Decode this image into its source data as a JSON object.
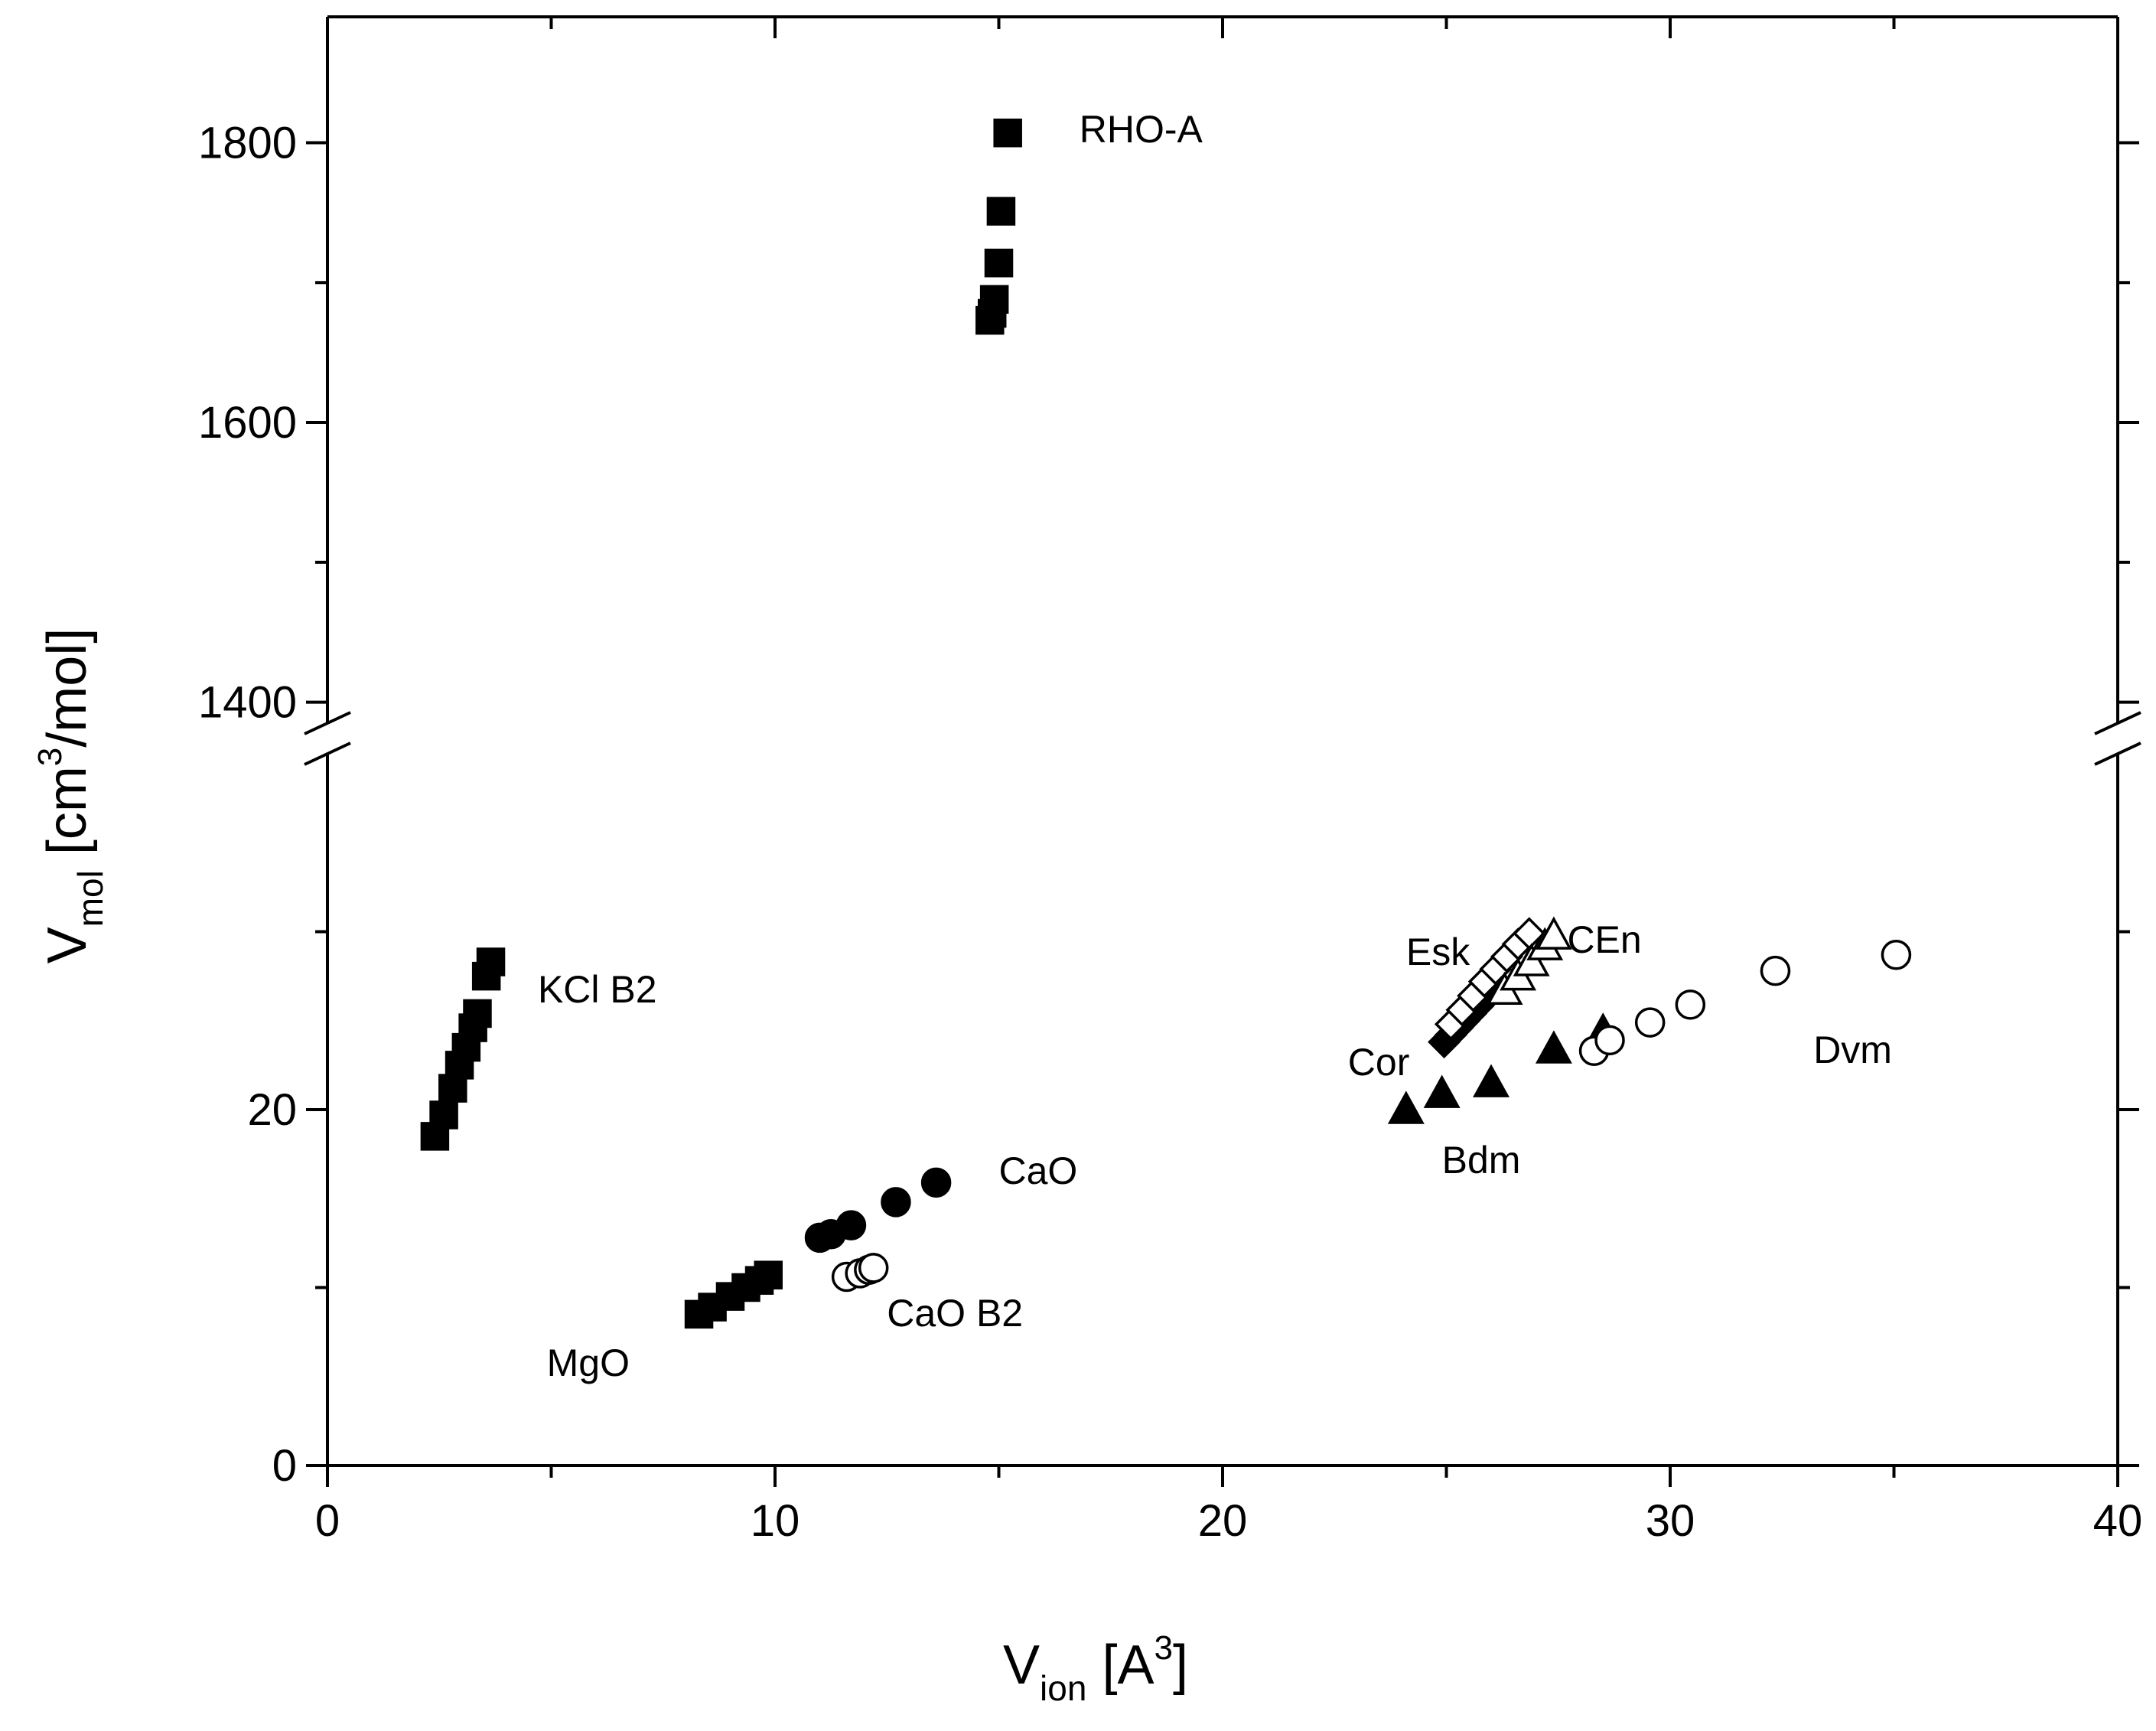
{
  "chart_data": {
    "type": "scatter",
    "title": "",
    "xlabel": {
      "main": "V",
      "sub": "ion",
      "text": " [A",
      "sup": "3",
      "end": "]"
    },
    "ylabel": {
      "main": "V",
      "sub": "mol",
      "text": " [cm",
      "sup": "3",
      "end": "/mol]"
    },
    "xlim": [
      0,
      40
    ],
    "x_ticks": [
      0,
      10,
      20,
      30,
      40
    ],
    "y_lower_lim": [
      0,
      40
    ],
    "y_lower_ticks": [
      0,
      20
    ],
    "y_upper_lim": [
      1385,
      1890
    ],
    "y_upper_ticks": [
      1400,
      1600,
      1800
    ],
    "y_axis_break": true,
    "grid": false,
    "series": [
      {
        "name": "RHO-A",
        "marker": "square",
        "fill": "filled",
        "panel": "upper",
        "x": [
          14.8,
          14.85,
          14.9,
          15.0,
          15.05,
          15.2
        ],
        "y": [
          1673,
          1678,
          1688,
          1714,
          1751,
          1807
        ]
      },
      {
        "name": "KCl B2",
        "marker": "square",
        "fill": "filled",
        "panel": "lower",
        "x": [
          2.4,
          2.6,
          2.8,
          2.95,
          3.1,
          3.25,
          3.35,
          3.55,
          3.65
        ],
        "y": [
          18.5,
          19.7,
          21.2,
          22.5,
          23.5,
          24.6,
          25.4,
          27.5,
          28.3
        ]
      },
      {
        "name": "MgO",
        "marker": "square",
        "fill": "filled",
        "panel": "lower",
        "x": [
          8.3,
          8.6,
          9.0,
          9.35,
          9.65,
          9.85
        ],
        "y": [
          8.5,
          8.9,
          9.5,
          10.0,
          10.4,
          10.7
        ]
      },
      {
        "name": "CaO",
        "marker": "circle",
        "fill": "filled",
        "panel": "lower",
        "x": [
          11.0,
          11.25,
          11.7,
          12.7,
          13.6
        ],
        "y": [
          12.8,
          13.0,
          13.5,
          14.8,
          15.9
        ]
      },
      {
        "name": "CaO B2",
        "marker": "circle",
        "fill": "open",
        "panel": "lower",
        "x": [
          11.6,
          11.9,
          12.1,
          12.2
        ],
        "y": [
          10.6,
          10.8,
          11.0,
          11.1
        ]
      },
      {
        "name": "Cor",
        "marker": "diamond",
        "fill": "filled",
        "panel": "lower",
        "x": [
          24.95,
          25.1,
          25.25,
          25.4,
          25.55,
          25.7,
          25.85,
          26.0
        ],
        "y": [
          23.8,
          24.2,
          24.6,
          25.0,
          25.4,
          25.8,
          26.2,
          26.6
        ]
      },
      {
        "name": "Esk",
        "marker": "diamond",
        "fill": "open",
        "panel": "lower",
        "x": [
          25.1,
          25.35,
          25.6,
          25.85,
          26.1,
          26.35,
          26.6,
          26.85
        ],
        "y": [
          24.8,
          25.6,
          26.4,
          27.2,
          27.9,
          28.6,
          29.3,
          29.9
        ]
      },
      {
        "name": "CEn",
        "marker": "triangle",
        "fill": "open",
        "panel": "lower",
        "x": [
          26.3,
          26.6,
          26.9,
          27.2,
          27.4
        ],
        "y": [
          26.7,
          27.5,
          28.3,
          29.2,
          29.8
        ]
      },
      {
        "name": "Bdm",
        "marker": "triangle",
        "fill": "filled",
        "panel": "lower",
        "x": [
          24.1,
          24.9,
          26.0,
          27.4,
          28.5
        ],
        "y": [
          20.0,
          20.9,
          21.5,
          23.4,
          24.4
        ]
      },
      {
        "name": "Dvm",
        "marker": "circle",
        "fill": "open",
        "panel": "lower",
        "x": [
          28.3,
          28.65,
          29.55,
          30.45,
          32.35,
          35.05
        ],
        "y": [
          23.3,
          23.9,
          24.9,
          25.9,
          27.8,
          28.7
        ]
      }
    ],
    "annotations": [
      {
        "text": "RHO-A",
        "x": 16.8,
        "y": 1810
      },
      {
        "text": "KCl B2",
        "x": 4.7,
        "y": 26.8
      },
      {
        "text": "CaO",
        "x": 15.0,
        "y": 16.6
      },
      {
        "text": "CaO B2",
        "x": 12.5,
        "y": 8.6
      },
      {
        "text": "MgO",
        "x": 4.9,
        "y": 5.8
      },
      {
        "text": "Esk",
        "x": 24.1,
        "y": 28.9
      },
      {
        "text": "CEn",
        "x": 27.7,
        "y": 29.6
      },
      {
        "text": "Cor",
        "x": 22.8,
        "y": 22.7
      },
      {
        "text": "Bdm",
        "x": 24.9,
        "y": 17.2
      },
      {
        "text": "Dvm",
        "x": 33.2,
        "y": 23.4
      }
    ]
  }
}
